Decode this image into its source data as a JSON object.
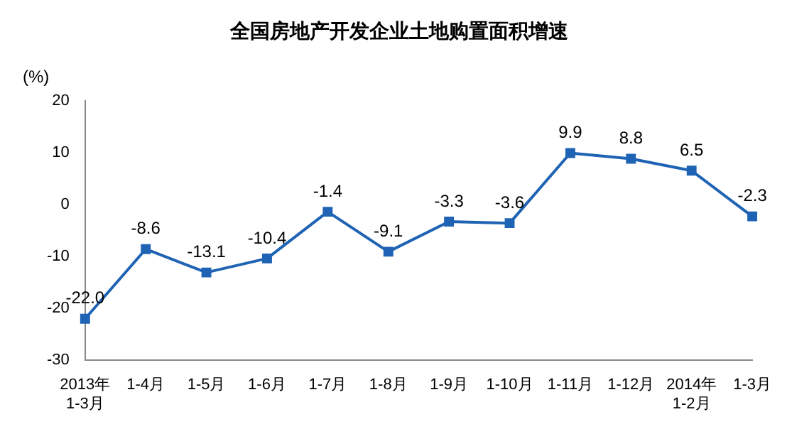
{
  "chart_data": {
    "type": "line",
    "title": "全国房地产开发企业土地购置面积增速",
    "ylabel": "(%)",
    "categories": [
      "2013年\n1-3月",
      "1-4月",
      "1-5月",
      "1-6月",
      "1-7月",
      "1-8月",
      "1-9月",
      "1-10月",
      "1-11月",
      "1-12月",
      "2014年\n1-2月",
      "1-3月"
    ],
    "series": [
      {
        "color": "#1f63b4",
        "values": [
          -22.0,
          -8.6,
          -13.1,
          -10.4,
          -1.4,
          -9.1,
          -3.3,
          -3.6,
          9.9,
          8.8,
          6.5,
          -2.3
        ],
        "value_labels": [
          "-22.0",
          "-8.6",
          "-13.1",
          "-10.4",
          "-1.4",
          "-9.1",
          "-3.3",
          "-3.6",
          "9.9",
          "8.8",
          "6.5",
          "-2.3"
        ]
      }
    ],
    "ylim": [
      -30,
      20
    ],
    "yticks": [
      -30,
      -20,
      -10,
      0,
      10,
      20
    ],
    "grid": false,
    "legend": false,
    "marker": "square",
    "line_style": "solid"
  }
}
